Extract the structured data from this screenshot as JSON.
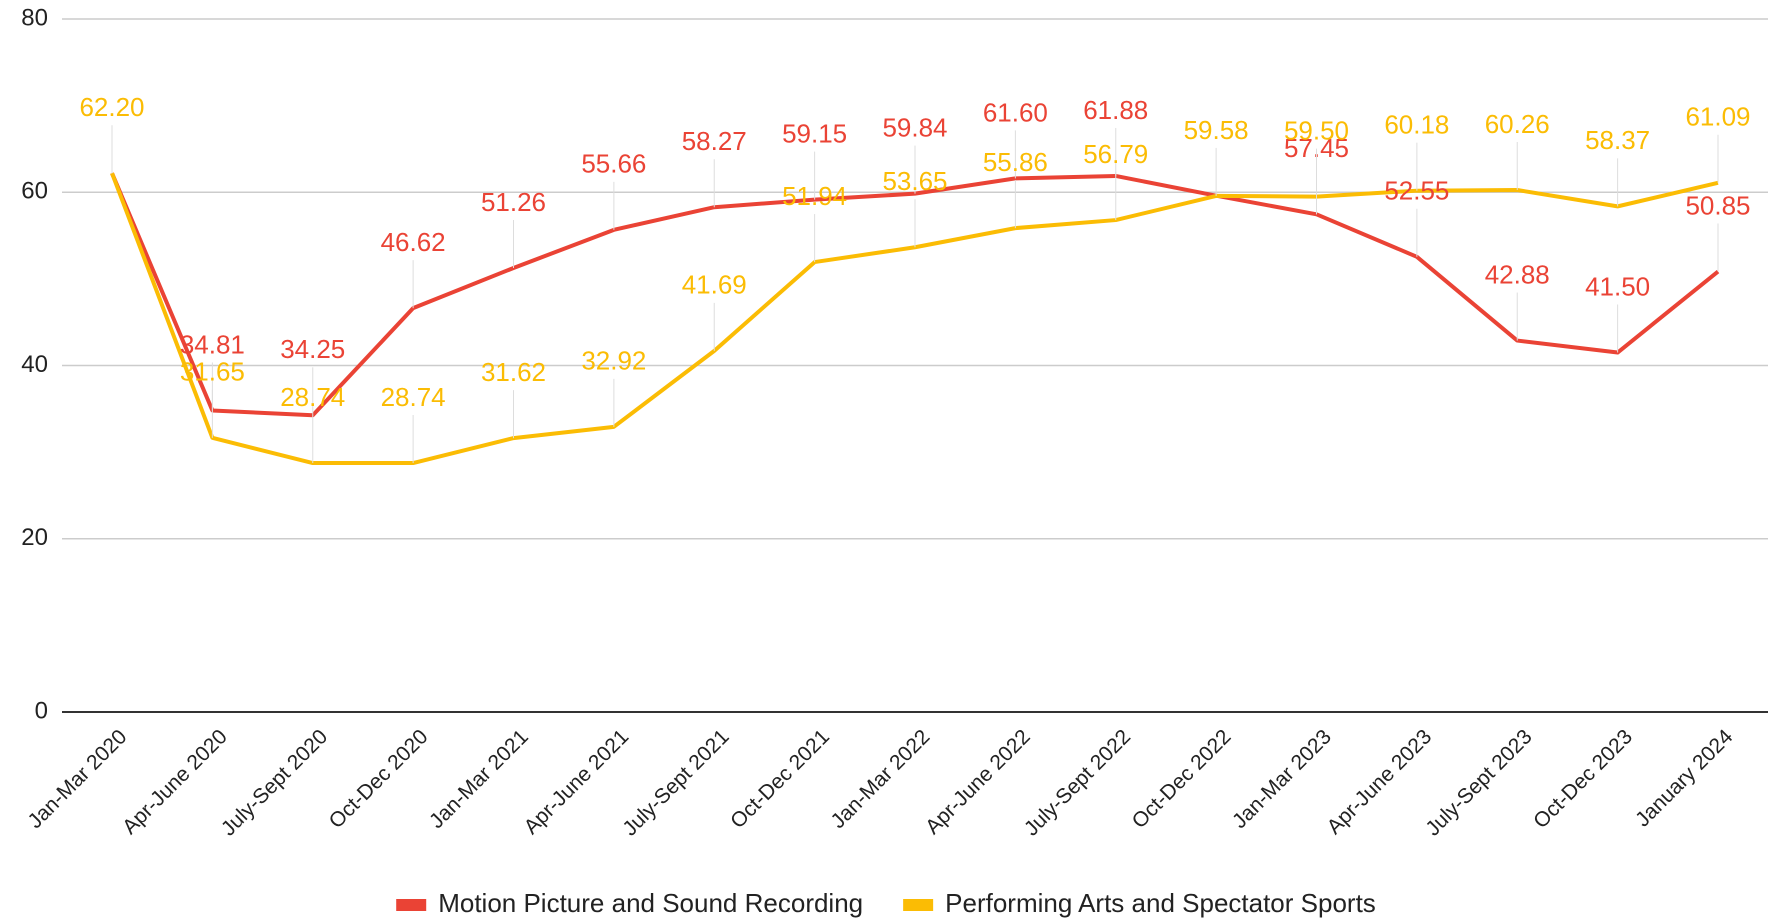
{
  "chart_data": {
    "type": "line",
    "categories": [
      "Jan-Mar 2020",
      "Apr-June 2020",
      "July-Sept 2020",
      "Oct-Dec 2020",
      "Jan-Mar 2021",
      "Apr-June 2021",
      "July-Sept 2021",
      "Oct-Dec 2021",
      "Jan-Mar 2022",
      "Apr-June 2022",
      "July-Sept 2022",
      "Oct-Dec 2022",
      "Jan-Mar 2023",
      "Apr-June 2023",
      "July-Sept 2023",
      "Oct-Dec 2023",
      "January 2024"
    ],
    "series": [
      {
        "name": "Motion Picture and Sound Recording",
        "color": "#ea4335",
        "values": [
          62.2,
          34.81,
          34.25,
          46.62,
          51.26,
          55.66,
          58.27,
          59.15,
          59.84,
          61.6,
          61.88,
          59.6,
          57.45,
          52.55,
          42.88,
          41.5,
          50.85
        ],
        "value_labels": [
          null,
          "34.81",
          "34.25",
          "46.62",
          "51.26",
          "55.66",
          "58.27",
          "59.15",
          "59.84",
          "61.60",
          "61.88",
          null,
          "57.45",
          "52.55",
          "42.88",
          "41.50",
          "50.85"
        ]
      },
      {
        "name": "Performing Arts and Spectator Sports",
        "color": "#fbbc04",
        "values": [
          62.2,
          31.65,
          28.74,
          28.74,
          31.62,
          32.92,
          41.69,
          51.94,
          53.65,
          55.86,
          56.79,
          59.58,
          59.5,
          60.18,
          60.26,
          58.37,
          61.09
        ],
        "value_labels": [
          "62.20",
          "31.65",
          "28.74",
          "28.74",
          "31.62",
          "32.92",
          "41.69",
          "51.94",
          "53.65",
          "55.86",
          "56.79",
          "59.58",
          "59.50",
          "60.18",
          "60.26",
          "58.37",
          "61.09"
        ]
      }
    ],
    "ylim": [
      0,
      80
    ],
    "yticks": [
      0,
      20,
      40,
      60,
      80
    ],
    "grid": true,
    "legend": "bottom"
  }
}
